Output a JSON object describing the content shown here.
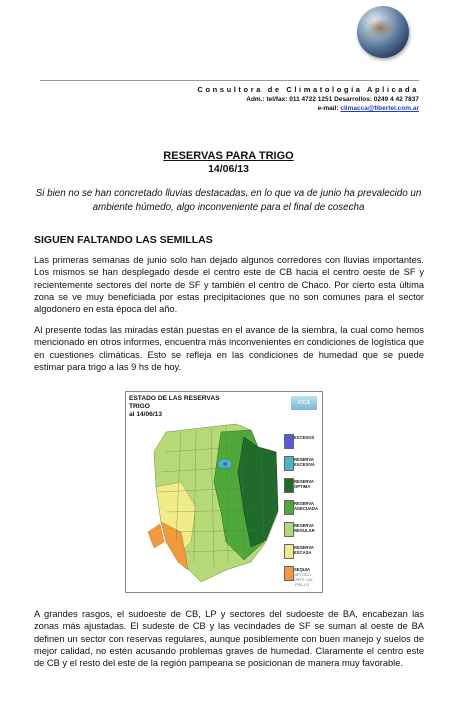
{
  "letterhead": {
    "name": "Consultora de Climatología Aplicada",
    "contact": "Adm.: tel/fax: 011 4722 1251  Desarrollos: 0249 4 42 7837",
    "email_label": "e-mail: ",
    "email": "climacca@fibertel.com.ar"
  },
  "document": {
    "title": "RESERVAS PARA TRIGO",
    "date": "14/06/13",
    "subtitle": "Si bien no se han concretado lluvias destacadas, en lo que va de junio ha prevalecido un ambiente húmedo, algo inconveniente para el final de cosecha",
    "section_heading": "SIGUEN FALTANDO LAS SEMILLAS",
    "paragraphs": [
      "Las primeras semanas de junio solo han dejado algunos corredores con lluvias importantes. Los mismos se han desplegado desde el centro este de CB hacia el centro oeste de SF y recientemente sectores del norte de SF y también el centro de Chaco. Por cierto esta última zona se ve muy beneficiada por estas precipitaciones que no son comunes para el sector algodonero en esta época del año.",
      "Al presente todas las miradas están puestas en el avance de la siembra, la cual como hemos mencionado en otros informes, encuentra más inconvenientes en condiciones de logística que en cuestiones climáticas. Esto se refleja en las condiciones de humedad que se puede estimar para trigo  a las 9 hs de hoy.",
      "A grandes rasgos, el sudoeste de CB, LP y sectores del sudoeste de BA, encabezan las zonas más ajustadas. El sudeste de CB y las vecindades de SF se suman al oeste de BA definen un sector con reservas regulares, aunque posiblemente con buen manejo y suelos de mejor calidad, no estén acusando problemas graves de humedad. Claramente el centro este de CB y el resto del este de la región pampeana se posicionan de manera muy favorable."
    ]
  },
  "map": {
    "title_line1": "ESTADO DE LAS RESERVAS",
    "title_line2": "TRIGO",
    "date_label": "al 14/06/13",
    "logo_text": "CCA",
    "credit": "METODO FORTE LAY PIELLO",
    "legend": [
      {
        "label": "EXCESOS",
        "color": "#5a5ad6"
      },
      {
        "label": "RESERVA EXCESIVA",
        "color": "#46b6c9"
      },
      {
        "label": "RESERVA OPTIMA",
        "color": "#1f6b2c"
      },
      {
        "label": "RESERVA ADECUADA",
        "color": "#4fa83a"
      },
      {
        "label": "RESERVA REGULAR",
        "color": "#b6d978"
      },
      {
        "label": "RESERVA ESCASA",
        "color": "#f1ec8a"
      },
      {
        "label": "SEQUIA",
        "color": "#f19a3c"
      }
    ]
  }
}
